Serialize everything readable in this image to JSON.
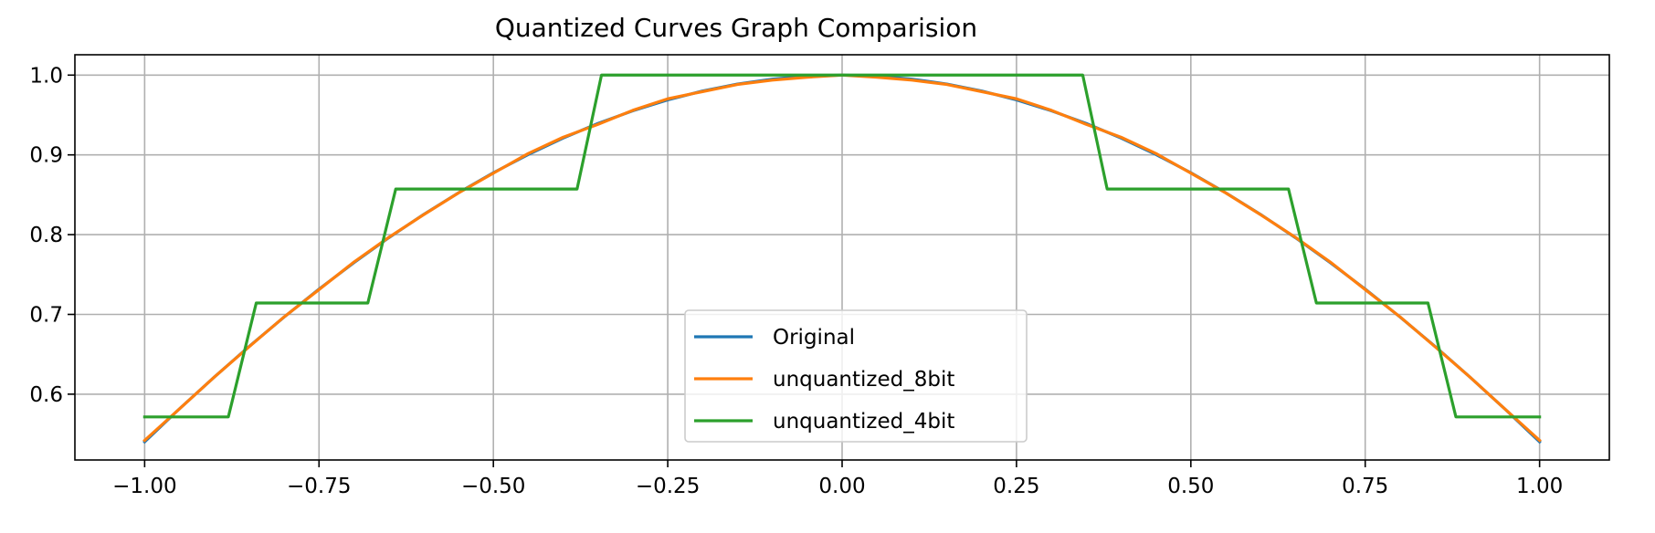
{
  "chart_data": {
    "type": "line",
    "title": "Quantized Curves Graph Comparision",
    "xlabel": "",
    "ylabel": "",
    "xlim": [
      -1.1,
      1.1
    ],
    "ylim": [
      0.5175,
      1.0255
    ],
    "grid": true,
    "legend_position": "lower center",
    "x_ticks": [
      -1.0,
      -0.75,
      -0.5,
      -0.25,
      0.0,
      0.25,
      0.5,
      0.75,
      1.0
    ],
    "x_tick_labels": [
      "−1.00",
      "−0.75",
      "−0.50",
      "−0.25",
      "0.00",
      "0.25",
      "0.50",
      "0.75",
      "1.00"
    ],
    "y_ticks": [
      0.6,
      0.7,
      0.8,
      0.9,
      1.0
    ],
    "y_tick_labels": [
      "0.6",
      "0.7",
      "0.8",
      "0.9",
      "1.0"
    ],
    "x": [
      -1.0,
      -0.95,
      -0.9,
      -0.85,
      -0.8,
      -0.75,
      -0.7,
      -0.65,
      -0.6,
      -0.55,
      -0.5,
      -0.45,
      -0.4,
      -0.35,
      -0.3,
      -0.25,
      -0.2,
      -0.15,
      -0.1,
      -0.05,
      0.0,
      0.05,
      0.1,
      0.15,
      0.2,
      0.25,
      0.3,
      0.35,
      0.4,
      0.45,
      0.5,
      0.55,
      0.6,
      0.65,
      0.7,
      0.75,
      0.8,
      0.85,
      0.9,
      0.95,
      1.0
    ],
    "series": [
      {
        "name": "Original",
        "color": "#1f77b4",
        "style": "line",
        "y": [
          0.5403,
          0.5817,
          0.6216,
          0.66,
          0.6967,
          0.7317,
          0.7648,
          0.7961,
          0.8253,
          0.8525,
          0.8776,
          0.9004,
          0.9211,
          0.9394,
          0.9553,
          0.9689,
          0.9801,
          0.9888,
          0.995,
          0.9988,
          1.0,
          0.9988,
          0.995,
          0.9888,
          0.9801,
          0.9689,
          0.9553,
          0.9394,
          0.9211,
          0.9004,
          0.8776,
          0.8525,
          0.8253,
          0.7961,
          0.7648,
          0.7317,
          0.6967,
          0.66,
          0.6216,
          0.5817,
          0.5403
        ]
      },
      {
        "name": "unquantized_8bit",
        "color": "#ff7f0e",
        "style": "line",
        "y": [
          0.5421,
          0.5817,
          0.6215,
          0.6596,
          0.6969,
          0.7311,
          0.7656,
          0.7966,
          0.825,
          0.8523,
          0.8771,
          0.9017,
          0.9221,
          0.9383,
          0.9559,
          0.9703,
          0.9793,
          0.9883,
          0.9937,
          0.9973,
          1.0,
          0.9973,
          0.9937,
          0.9883,
          0.9793,
          0.9703,
          0.9559,
          0.9383,
          0.9221,
          0.9017,
          0.8771,
          0.8523,
          0.825,
          0.7966,
          0.7656,
          0.7311,
          0.6969,
          0.6596,
          0.6215,
          0.5817,
          0.5421
        ]
      },
      {
        "name": "unquantized_4bit",
        "color": "#2ca02c",
        "style": "step",
        "points": [
          [
            -1.0,
            0.5715
          ],
          [
            -0.88,
            0.5715
          ],
          [
            -0.84,
            0.7143
          ],
          [
            -0.68,
            0.7143
          ],
          [
            -0.64,
            0.8572
          ],
          [
            -0.38,
            0.8572
          ],
          [
            -0.345,
            1.0
          ],
          [
            0.345,
            1.0
          ],
          [
            0.38,
            0.8572
          ],
          [
            0.64,
            0.8572
          ],
          [
            0.68,
            0.7143
          ],
          [
            0.84,
            0.7143
          ],
          [
            0.88,
            0.5715
          ],
          [
            1.0,
            0.5715
          ]
        ]
      }
    ]
  }
}
